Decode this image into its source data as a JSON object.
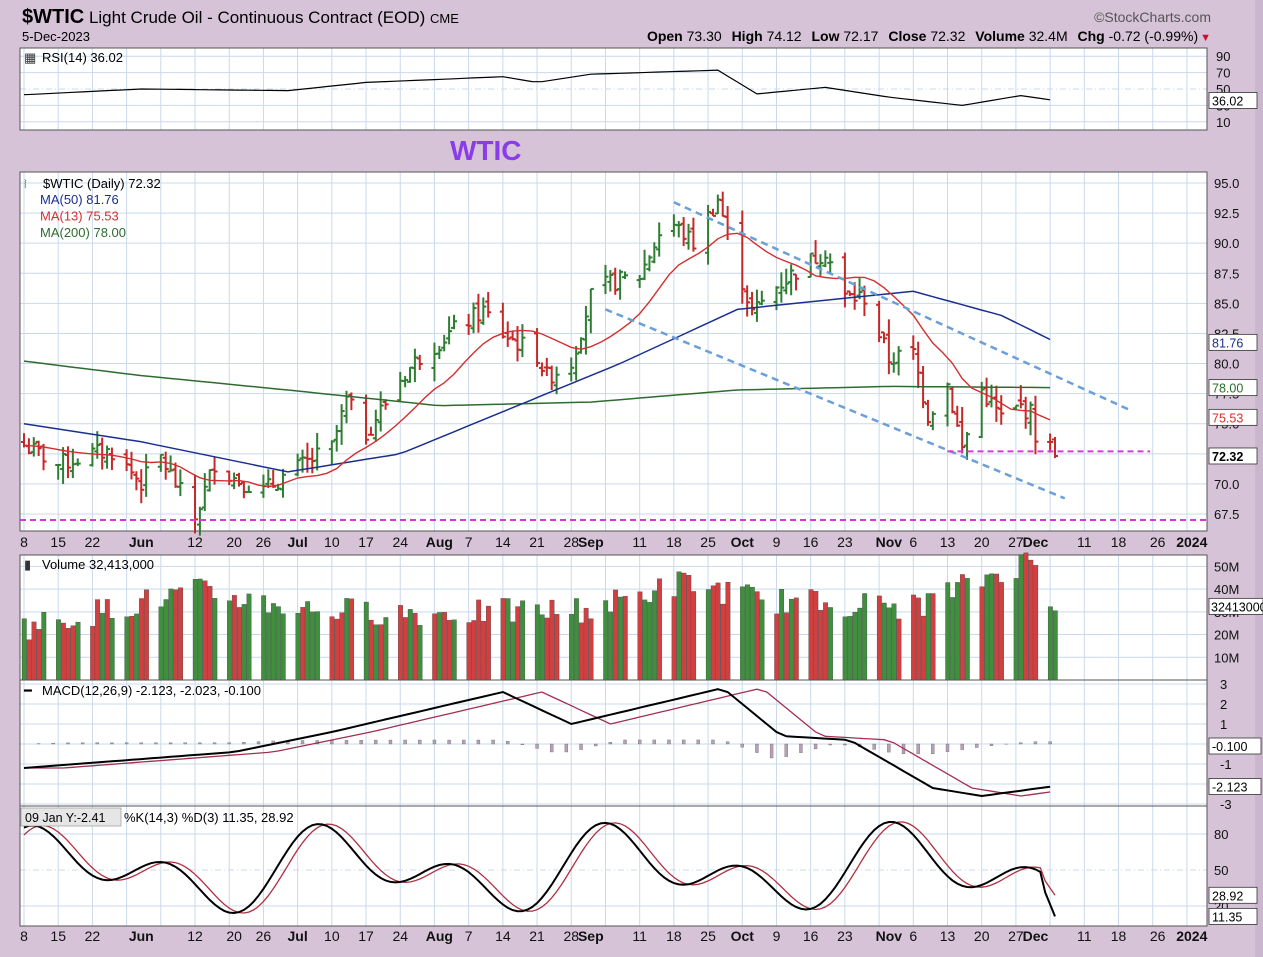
{
  "header": {
    "symbol": "$WTIC",
    "name": "Light Crude Oil - Continuous Contract (EOD)",
    "exchange": "CME",
    "brand": "©StockCharts.com",
    "date": "5-Dec-2023",
    "open_label": "Open",
    "open": "73.30",
    "high_label": "High",
    "high": "74.12",
    "low_label": "Low",
    "low": "72.17",
    "close_label": "Close",
    "close": "72.32",
    "volume_label": "Volume",
    "volume": "32.4M",
    "chg_label": "Chg",
    "chg": "-0.72 (-0.99%)"
  },
  "annotation": "WTIC",
  "colors": {
    "up": "#2e7d32",
    "down": "#c62828",
    "ma50": "#1a2f8f",
    "ma13": "#d32f2f",
    "ma200": "#2e6b2e",
    "channel": "#6a9fd8",
    "support": "#d63ad6",
    "annotation": "#8a3ce8"
  },
  "rsi_panel": {
    "label": "RSI(14) 36.02",
    "ticks": [
      "90",
      "70",
      "50",
      "30",
      "10"
    ],
    "last_tag": "36.02"
  },
  "price_panel": {
    "legend": [
      {
        "text": "$WTIC (Daily) 72.32",
        "color": "#000000"
      },
      {
        "text": "MA(50) 81.76",
        "color": "#1a2f8f"
      },
      {
        "text": "MA(13) 75.53",
        "color": "#d32f2f"
      },
      {
        "text": "MA(200) 78.00",
        "color": "#2e6b2e"
      }
    ],
    "ticks": [
      "95.0",
      "92.5",
      "90.0",
      "87.5",
      "85.0",
      "82.5",
      "80.0",
      "77.5",
      "75.0",
      "72.5",
      "70.0",
      "67.5"
    ],
    "tags": [
      {
        "text": "81.76",
        "color": "#1a2f8f"
      },
      {
        "text": "78.00",
        "color": "#2e6b2e"
      },
      {
        "text": "75.53",
        "color": "#d32f2f"
      },
      {
        "text": "72.32",
        "color": "#000000"
      }
    ]
  },
  "volume_panel": {
    "label": "Volume 32,413,000",
    "ticks": [
      "50M",
      "40M",
      "30M",
      "20M",
      "10M"
    ],
    "tag": "32413000"
  },
  "macd_panel": {
    "label": "MACD(12,26,9) -2.123, -2.023, -0.100",
    "ticks": [
      "3",
      "2",
      "1",
      "0",
      "-1",
      "-2",
      "-3"
    ],
    "tags": [
      "-0.100",
      "-2.123"
    ]
  },
  "stoch_panel": {
    "label": "%K(14,3) %D(3) 11.35, 28.92",
    "hover": "09 Jan Y:-2.41",
    "ticks": [
      "80",
      "50",
      "20"
    ],
    "tags": [
      "28.92",
      "11.35"
    ]
  },
  "x_axis": {
    "labels": [
      "8",
      "15",
      "22",
      "Jun",
      "12",
      "20",
      "26",
      "Jul",
      "10",
      "17",
      "24",
      "Aug",
      "7",
      "14",
      "21",
      "28",
      "Sep",
      "11",
      "18",
      "25",
      "Oct",
      "9",
      "16",
      "23",
      "Nov",
      "6",
      "13",
      "20",
      "27",
      "Dec",
      "11",
      "18",
      "26",
      "2024"
    ],
    "months": [
      "Jun",
      "Jul",
      "Aug",
      "Sep",
      "Oct",
      "Nov",
      "Dec",
      "2024"
    ]
  },
  "chart_data": {
    "type": "ohlc",
    "title": "$WTIC Light Crude Oil - Continuous Contract (EOD)",
    "ylim": [
      66.5,
      96.5
    ],
    "ohlc_series": {
      "x_range": [
        "2023-05-08",
        "2023-12-05"
      ],
      "close_keypoints": [
        [
          "2023-05-08",
          73.2
        ],
        [
          "2023-05-15",
          71.6
        ],
        [
          "2023-05-22",
          72.5
        ],
        [
          "2023-05-26",
          72.7
        ],
        [
          "2023-06-01",
          70.1
        ],
        [
          "2023-06-05",
          72.2
        ],
        [
          "2023-06-12",
          67.1
        ],
        [
          "2023-06-16",
          71.8
        ],
        [
          "2023-06-20",
          70.5
        ],
        [
          "2023-06-26",
          69.4
        ],
        [
          "2023-06-30",
          70.6
        ],
        [
          "2023-07-05",
          71.8
        ],
        [
          "2023-07-10",
          73.0
        ],
        [
          "2023-07-13",
          76.9
        ],
        [
          "2023-07-17",
          74.2
        ],
        [
          "2023-07-24",
          78.7
        ],
        [
          "2023-07-28",
          80.6
        ],
        [
          "2023-08-04",
          82.8
        ],
        [
          "2023-08-10",
          84.4
        ],
        [
          "2023-08-14",
          82.5
        ],
        [
          "2023-08-21",
          80.7
        ],
        [
          "2023-08-23",
          78.9
        ],
        [
          "2023-08-28",
          80.1
        ],
        [
          "2023-09-01",
          85.6
        ],
        [
          "2023-09-05",
          86.7
        ],
        [
          "2023-09-11",
          87.3
        ],
        [
          "2023-09-15",
          90.8
        ],
        [
          "2023-09-18",
          91.5
        ],
        [
          "2023-09-22",
          90.0
        ],
        [
          "2023-09-27",
          93.7
        ],
        [
          "2023-09-29",
          90.8
        ],
        [
          "2023-10-04",
          84.2
        ],
        [
          "2023-10-09",
          86.4
        ],
        [
          "2023-10-13",
          87.7
        ],
        [
          "2023-10-19",
          89.4
        ],
        [
          "2023-10-23",
          85.5
        ],
        [
          "2023-10-27",
          85.5
        ],
        [
          "2023-11-01",
          80.4
        ],
        [
          "2023-11-06",
          80.8
        ],
        [
          "2023-11-09",
          75.7
        ],
        [
          "2023-11-13",
          78.3
        ],
        [
          "2023-11-16",
          72.9
        ],
        [
          "2023-11-20",
          77.8
        ],
        [
          "2023-11-24",
          75.5
        ],
        [
          "2023-11-28",
          76.4
        ],
        [
          "2023-11-30",
          75.9
        ],
        [
          "2023-12-01",
          74.1
        ],
        [
          "2023-12-04",
          73.0
        ],
        [
          "2023-12-05",
          72.3
        ]
      ]
    },
    "ma50": [
      [
        "2023-05-08",
        75.0
      ],
      [
        "2023-06-01",
        73.5
      ],
      [
        "2023-07-01",
        71.0
      ],
      [
        "2023-07-24",
        72.5
      ],
      [
        "2023-08-14",
        76.0
      ],
      [
        "2023-09-07",
        80.0
      ],
      [
        "2023-10-01",
        84.5
      ],
      [
        "2023-10-20",
        85.3
      ],
      [
        "2023-11-06",
        86.0
      ],
      [
        "2023-11-24",
        84.0
      ],
      [
        "2023-12-05",
        81.8
      ]
    ],
    "ma200": [
      [
        "2023-05-08",
        80.2
      ],
      [
        "2023-06-01",
        79.0
      ],
      [
        "2023-07-01",
        77.8
      ],
      [
        "2023-08-01",
        76.5
      ],
      [
        "2023-09-01",
        76.8
      ],
      [
        "2023-10-01",
        77.8
      ],
      [
        "2023-11-01",
        78.1
      ],
      [
        "2023-12-05",
        78.0
      ]
    ],
    "channel_upper": [
      [
        "2023-09-18",
        93.4
      ],
      [
        "2023-12-20",
        76.2
      ]
    ],
    "channel_lower": [
      [
        "2023-09-04",
        84.5
      ],
      [
        "2023-12-07",
        68.8
      ]
    ],
    "support_lines": [
      72.7,
      67.0
    ],
    "rsi": [
      [
        "2023-05-08",
        43
      ],
      [
        "2023-06-01",
        50
      ],
      [
        "2023-07-01",
        48
      ],
      [
        "2023-07-17",
        58
      ],
      [
        "2023-08-14",
        65
      ],
      [
        "2023-08-21",
        58
      ],
      [
        "2023-09-01",
        68
      ],
      [
        "2023-09-27",
        73
      ],
      [
        "2023-10-05",
        44
      ],
      [
        "2023-10-19",
        52
      ],
      [
        "2023-11-01",
        40
      ],
      [
        "2023-11-16",
        30
      ],
      [
        "2023-11-28",
        42
      ],
      [
        "2023-12-05",
        36
      ]
    ],
    "volume_millions": [
      [
        "2023-05-08",
        22
      ],
      [
        "2023-06-12",
        38
      ],
      [
        "2023-07-05",
        30
      ],
      [
        "2023-08-01",
        28
      ],
      [
        "2023-09-01",
        30
      ],
      [
        "2023-09-20",
        42
      ],
      [
        "2023-10-06",
        34
      ],
      [
        "2023-11-06",
        31
      ],
      [
        "2023-11-30",
        52
      ],
      [
        "2023-12-05",
        32.4
      ]
    ],
    "macd": {
      "line": [
        [
          "2023-05-08",
          -1.2
        ],
        [
          "2023-06-20",
          -0.4
        ],
        [
          "2023-07-10",
          0.6
        ],
        [
          "2023-08-14",
          2.6
        ],
        [
          "2023-08-28",
          1.0
        ],
        [
          "2023-09-28",
          2.8
        ],
        [
          "2023-10-10",
          0.4
        ],
        [
          "2023-10-24",
          0.2
        ],
        [
          "2023-11-10",
          -2.2
        ],
        [
          "2023-11-20",
          -2.6
        ],
        [
          "2023-12-05",
          -2.1
        ]
      ],
      "signal_last": -2.023,
      "hist_last": -0.1
    },
    "stoch": {
      "k_last": 11.35,
      "d_last": 28.92
    }
  }
}
